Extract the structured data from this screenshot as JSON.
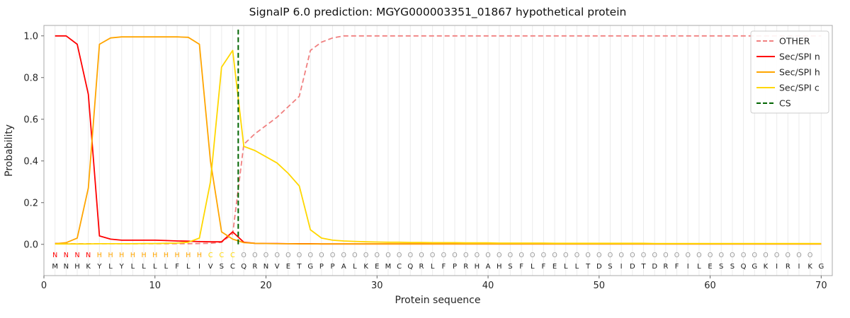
{
  "chart_data": {
    "type": "line",
    "title": "SignalP 6.0 prediction: MGYG000003351_01867 hypothetical protein",
    "xlabel": "Protein sequence",
    "ylabel": "Probability",
    "xlim": [
      0,
      71
    ],
    "ylim": [
      -0.15,
      1.05
    ],
    "xticks": [
      0,
      10,
      20,
      30,
      40,
      50,
      60,
      70
    ],
    "yticks": [
      "0.0",
      "0.2",
      "0.4",
      "0.6",
      "0.8",
      "1.0"
    ],
    "grid": "vertical-line-per-residue",
    "legend_position": "upper-right",
    "sequence": "MNHKYLYLLLLFLIVSCQRNVETGPPALKEMCQRLFPRHAHSFLFELLTDSIDTDRFILESSQGKIRIKG",
    "regions": "NNNNHHHHHHHHHHCCCOOOOOOOOOOOOOOOOOOOOOOOOOOOOOOOOOOOOOOOOOOOOOOOOOOOO",
    "region_colors": {
      "N": "#ff0000",
      "H": "#ffa500",
      "C": "#ffd700",
      "O": "#999999"
    },
    "series": [
      {
        "id": "other",
        "name": "OTHER",
        "color": "#f08080",
        "dash": true,
        "values": [
          0.005,
          0.003,
          0.003,
          0.003,
          0.003,
          0.003,
          0.003,
          0.003,
          0.003,
          0.003,
          0.003,
          0.003,
          0.003,
          0.004,
          0.005,
          0.01,
          0.05,
          0.48,
          0.53,
          0.57,
          0.61,
          0.66,
          0.71,
          0.93,
          0.97,
          0.99,
          1.0,
          1.0,
          1.0,
          1.0,
          1.0,
          1.0,
          1.0,
          1.0,
          1.0,
          1.0,
          1.0,
          1.0,
          1.0,
          1.0,
          1.0,
          1.0,
          1.0,
          1.0,
          1.0,
          1.0,
          1.0,
          1.0,
          1.0,
          1.0,
          1.0,
          1.0,
          1.0,
          1.0,
          1.0,
          1.0,
          1.0,
          1.0,
          1.0,
          1.0,
          1.0,
          1.0,
          1.0,
          1.0,
          1.0,
          1.0,
          1.0,
          1.0,
          1.0,
          1.0
        ]
      },
      {
        "id": "sec-spi-n",
        "name": "Sec/SPI n",
        "color": "#ff0000",
        "dash": false,
        "values": [
          1.0,
          1.0,
          0.96,
          0.72,
          0.04,
          0.025,
          0.02,
          0.02,
          0.02,
          0.02,
          0.018,
          0.016,
          0.015,
          0.013,
          0.012,
          0.012,
          0.06,
          0.01,
          0.005,
          0.004,
          0.004,
          0.003,
          0.003,
          0.003,
          0.002,
          0.002,
          0.002,
          0.002,
          0.002,
          0.002,
          0.002,
          0.002,
          0.002,
          0.002,
          0.002,
          0.002,
          0.002,
          0.002,
          0.002,
          0.002,
          0.002,
          0.002,
          0.002,
          0.002,
          0.002,
          0.002,
          0.002,
          0.002,
          0.002,
          0.002,
          0.002,
          0.002,
          0.002,
          0.002,
          0.002,
          0.002,
          0.002,
          0.002,
          0.002,
          0.002,
          0.002,
          0.002,
          0.002,
          0.002,
          0.002,
          0.002,
          0.002,
          0.002,
          0.002,
          0.002
        ]
      },
      {
        "id": "sec-spi-h",
        "name": "Sec/SPI h",
        "color": "#ffa500",
        "dash": false,
        "values": [
          0.003,
          0.008,
          0.03,
          0.27,
          0.96,
          0.99,
          0.995,
          0.995,
          0.995,
          0.995,
          0.995,
          0.995,
          0.993,
          0.96,
          0.4,
          0.06,
          0.025,
          0.008,
          0.005,
          0.004,
          0.003,
          0.003,
          0.002,
          0.002,
          0.002,
          0.002,
          0.002,
          0.002,
          0.002,
          0.002,
          0.002,
          0.002,
          0.002,
          0.002,
          0.002,
          0.002,
          0.002,
          0.002,
          0.002,
          0.002,
          0.002,
          0.002,
          0.002,
          0.002,
          0.002,
          0.002,
          0.002,
          0.002,
          0.002,
          0.002,
          0.002,
          0.002,
          0.002,
          0.002,
          0.002,
          0.002,
          0.002,
          0.002,
          0.002,
          0.002,
          0.002,
          0.002,
          0.002,
          0.002,
          0.002,
          0.002,
          0.002,
          0.002,
          0.002,
          0.002
        ]
      },
      {
        "id": "sec-spi-c",
        "name": "Sec/SPI c",
        "color": "#ffd700",
        "dash": false,
        "values": [
          0.002,
          0.002,
          0.002,
          0.002,
          0.003,
          0.003,
          0.003,
          0.003,
          0.004,
          0.004,
          0.005,
          0.006,
          0.01,
          0.03,
          0.3,
          0.85,
          0.93,
          0.47,
          0.45,
          0.42,
          0.39,
          0.34,
          0.28,
          0.07,
          0.03,
          0.02,
          0.016,
          0.014,
          0.012,
          0.011,
          0.01,
          0.01,
          0.009,
          0.009,
          0.008,
          0.008,
          0.008,
          0.007,
          0.007,
          0.007,
          0.006,
          0.006,
          0.006,
          0.006,
          0.006,
          0.005,
          0.005,
          0.005,
          0.005,
          0.005,
          0.005,
          0.005,
          0.005,
          0.005,
          0.004,
          0.004,
          0.004,
          0.004,
          0.004,
          0.004,
          0.004,
          0.004,
          0.004,
          0.004,
          0.004,
          0.004,
          0.004,
          0.004,
          0.004,
          0.004
        ]
      }
    ],
    "cs_line": {
      "name": "CS",
      "x": 17.5,
      "color": "#006400",
      "dash": true
    }
  }
}
